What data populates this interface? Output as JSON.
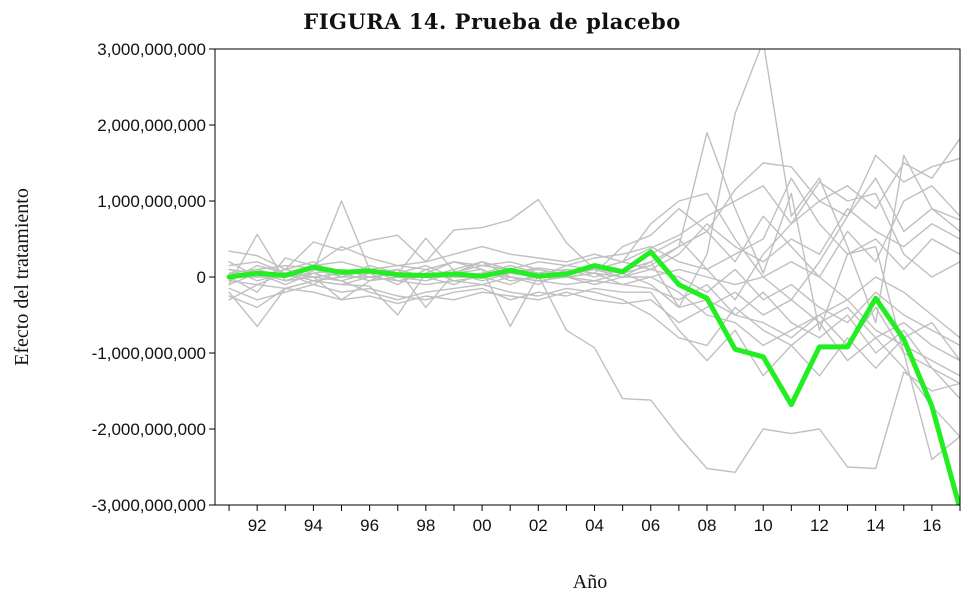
{
  "chart_data": {
    "type": "line",
    "title": "FIGURA 14. Prueba de placebo",
    "xlabel": "Año",
    "ylabel": "Efecto del tratamiento",
    "xlim": [
      1990.5,
      2017
    ],
    "ylim": [
      -3000000000,
      3000000000
    ],
    "x_ticks": [
      1992,
      1994,
      1996,
      1998,
      2000,
      2002,
      2004,
      2006,
      2008,
      2010,
      2012,
      2014,
      2016
    ],
    "x_tick_labels": [
      "92",
      "94",
      "96",
      "98",
      "00",
      "02",
      "04",
      "06",
      "08",
      "10",
      "12",
      "14",
      "16"
    ],
    "y_ticks": [
      -3000000000,
      -2000000000,
      -1000000000,
      0,
      1000000000,
      2000000000,
      3000000000
    ],
    "y_tick_labels": [
      "-3,000,000,000",
      "-2,000,000,000",
      "-1,000,000,000",
      "0",
      "1,000,000,000",
      "2,000,000,000",
      "3,000,000,000"
    ],
    "grid": false,
    "legend": "none",
    "colors": {
      "treated": "#22ee22",
      "placebo": "#c0c0c0"
    },
    "x": [
      1991,
      1992,
      1993,
      1994,
      1995,
      1996,
      1997,
      1998,
      1999,
      2000,
      2001,
      2002,
      2003,
      2004,
      2005,
      2006,
      2007,
      2008,
      2009,
      2010,
      2011,
      2012,
      2013,
      2014,
      2015,
      2016,
      2017
    ],
    "series": [
      {
        "role": "treated",
        "values": [
          0,
          50000000,
          20000000,
          130000000,
          60000000,
          80000000,
          30000000,
          20000000,
          40000000,
          10000000,
          90000000,
          10000000,
          40000000,
          150000000,
          70000000,
          330000000,
          -100000000,
          -280000000,
          -950000000,
          -1050000000,
          -1680000000,
          -920000000,
          -920000000,
          -280000000,
          -820000000,
          -1700000000,
          -3050000000
        ]
      },
      {
        "role": "placebo",
        "values": [
          -100000000,
          560000000,
          -50000000,
          80000000,
          1000000000,
          100000000,
          -50000000,
          20000000,
          60000000,
          150000000,
          200000000,
          100000000,
          30000000,
          100000000,
          50000000,
          150000000,
          400000000,
          1900000000,
          900000000,
          50000000,
          1100000000,
          -700000000,
          300000000,
          400000000,
          -1000000000,
          -2400000000,
          -2100000000
        ]
      },
      {
        "role": "placebo",
        "values": [
          50000000,
          100000000,
          150000000,
          120000000,
          60000000,
          90000000,
          40000000,
          510000000,
          80000000,
          20000000,
          60000000,
          120000000,
          70000000,
          140000000,
          90000000,
          200000000,
          -400000000,
          300000000,
          2150000000,
          3100000000,
          800000000,
          1300000000,
          400000000,
          -600000000,
          1600000000,
          900000000,
          600000000
        ]
      },
      {
        "role": "placebo",
        "values": [
          -200000000,
          -650000000,
          -150000000,
          -50000000,
          -100000000,
          -120000000,
          -500000000,
          50000000,
          200000000,
          100000000,
          -650000000,
          20000000,
          -700000000,
          -930000000,
          -1600000000,
          -1620000000,
          -2100000000,
          -2520000000,
          -2570000000,
          -2000000000,
          -2060000000,
          -2000000000,
          -2500000000,
          -2520000000,
          -1250000000,
          -1500000000,
          -1400000000
        ]
      },
      {
        "role": "placebo",
        "values": [
          340000000,
          280000000,
          100000000,
          460000000,
          350000000,
          480000000,
          550000000,
          200000000,
          620000000,
          650000000,
          750000000,
          1020000000,
          450000000,
          100000000,
          200000000,
          380000000,
          550000000,
          800000000,
          1000000000,
          1200000000,
          700000000,
          1000000000,
          1200000000,
          900000000,
          1500000000,
          1300000000,
          1820000000
        ]
      },
      {
        "role": "placebo",
        "values": [
          -300000000,
          -100000000,
          50000000,
          0,
          -300000000,
          -50000000,
          100000000,
          -400000000,
          50000000,
          200000000,
          0,
          -100000000,
          100000000,
          50000000,
          400000000,
          550000000,
          900000000,
          600000000,
          1150000000,
          1500000000,
          1450000000,
          1000000000,
          800000000,
          1600000000,
          1250000000,
          1450000000,
          1560000000
        ]
      },
      {
        "role": "placebo",
        "values": [
          0,
          -200000000,
          250000000,
          150000000,
          400000000,
          250000000,
          150000000,
          200000000,
          300000000,
          400000000,
          300000000,
          250000000,
          200000000,
          300000000,
          200000000,
          700000000,
          1000000000,
          1100000000,
          500000000,
          0,
          -300000000,
          200000000,
          800000000,
          1300000000,
          600000000,
          900000000,
          750000000
        ]
      },
      {
        "role": "placebo",
        "values": [
          100000000,
          50000000,
          -100000000,
          50000000,
          -50000000,
          -200000000,
          -300000000,
          -200000000,
          -150000000,
          -100000000,
          -200000000,
          -250000000,
          -150000000,
          -200000000,
          -300000000,
          -500000000,
          -800000000,
          -900000000,
          -400000000,
          -700000000,
          -900000000,
          -600000000,
          -1100000000,
          -800000000,
          -1200000000,
          -1700000000,
          -2100000000
        ]
      },
      {
        "role": "placebo",
        "values": [
          -50000000,
          150000000,
          50000000,
          -100000000,
          100000000,
          50000000,
          -100000000,
          100000000,
          -50000000,
          0,
          -100000000,
          50000000,
          0,
          -50000000,
          50000000,
          -100000000,
          -400000000,
          -300000000,
          -500000000,
          -600000000,
          -800000000,
          -500000000,
          -900000000,
          -400000000,
          -1000000000,
          -1200000000,
          -1400000000
        ]
      },
      {
        "role": "placebo",
        "values": [
          200000000,
          0,
          100000000,
          200000000,
          0,
          150000000,
          50000000,
          0,
          100000000,
          200000000,
          100000000,
          0,
          150000000,
          250000000,
          300000000,
          400000000,
          200000000,
          100000000,
          300000000,
          500000000,
          1300000000,
          700000000,
          300000000,
          500000000,
          100000000,
          500000000,
          300000000
        ]
      },
      {
        "role": "placebo",
        "values": [
          -150000000,
          -300000000,
          -200000000,
          -100000000,
          -200000000,
          -150000000,
          -250000000,
          -300000000,
          -200000000,
          -150000000,
          -300000000,
          -200000000,
          -250000000,
          -150000000,
          -200000000,
          -200000000,
          -700000000,
          -1100000000,
          -700000000,
          -1300000000,
          -900000000,
          -1300000000,
          -800000000,
          -1200000000,
          -800000000,
          -600000000,
          -1100000000
        ]
      },
      {
        "role": "placebo",
        "values": [
          0,
          100000000,
          0,
          50000000,
          100000000,
          0,
          50000000,
          150000000,
          0,
          50000000,
          150000000,
          50000000,
          100000000,
          0,
          100000000,
          300000000,
          500000000,
          100000000,
          -300000000,
          300000000,
          700000000,
          1250000000,
          1000000000,
          1100000000,
          300000000,
          0,
          200000000
        ]
      },
      {
        "role": "placebo",
        "values": [
          100000000,
          -50000000,
          50000000,
          -50000000,
          0,
          100000000,
          0,
          -50000000,
          50000000,
          -50000000,
          50000000,
          100000000,
          0,
          50000000,
          -100000000,
          0,
          -200000000,
          -500000000,
          -600000000,
          -900000000,
          -700000000,
          -500000000,
          -300000000,
          -700000000,
          -900000000,
          -1100000000,
          -1300000000
        ]
      },
      {
        "role": "placebo",
        "values": [
          -100000000,
          50000000,
          -50000000,
          0,
          50000000,
          -50000000,
          0,
          0,
          -100000000,
          50000000,
          0,
          -50000000,
          0,
          -100000000,
          0,
          100000000,
          0,
          -200000000,
          100000000,
          -300000000,
          -100000000,
          -400000000,
          -600000000,
          -200000000,
          -500000000,
          -700000000,
          -900000000
        ]
      },
      {
        "role": "placebo",
        "values": [
          50000000,
          0,
          100000000,
          0,
          -50000000,
          50000000,
          100000000,
          0,
          50000000,
          100000000,
          -50000000,
          0,
          50000000,
          100000000,
          0,
          200000000,
          400000000,
          600000000,
          200000000,
          800000000,
          400000000,
          0,
          600000000,
          200000000,
          1000000000,
          1200000000,
          800000000
        ]
      },
      {
        "role": "placebo",
        "values": [
          -250000000,
          -400000000,
          -150000000,
          -200000000,
          -300000000,
          -250000000,
          -350000000,
          -250000000,
          -300000000,
          -200000000,
          -250000000,
          -300000000,
          -200000000,
          -300000000,
          -350000000,
          -300000000,
          -600000000,
          -400000000,
          -200000000,
          -500000000,
          -300000000,
          -600000000,
          -400000000,
          -800000000,
          -600000000,
          -900000000,
          -1100000000
        ]
      },
      {
        "role": "placebo",
        "values": [
          0,
          0,
          0,
          100000000,
          0,
          0,
          50000000,
          0,
          0,
          0,
          50000000,
          0,
          0,
          50000000,
          0,
          0,
          100000000,
          0,
          -100000000,
          0,
          200000000,
          0,
          -300000000,
          0,
          -200000000,
          -500000000,
          -800000000
        ]
      },
      {
        "role": "placebo",
        "values": [
          150000000,
          200000000,
          50000000,
          150000000,
          200000000,
          100000000,
          150000000,
          100000000,
          200000000,
          150000000,
          100000000,
          200000000,
          150000000,
          100000000,
          200000000,
          100000000,
          300000000,
          700000000,
          400000000,
          200000000,
          500000000,
          300000000,
          900000000,
          600000000,
          400000000,
          700000000,
          500000000
        ]
      },
      {
        "role": "placebo",
        "values": [
          -50000000,
          -100000000,
          -150000000,
          -50000000,
          -100000000,
          0,
          -50000000,
          -100000000,
          -50000000,
          -100000000,
          0,
          -50000000,
          -100000000,
          -50000000,
          -100000000,
          -150000000,
          -300000000,
          -100000000,
          -500000000,
          -200000000,
          -600000000,
          -800000000,
          -500000000,
          -1000000000,
          -700000000,
          -1200000000,
          -1600000000
        ]
      }
    ]
  }
}
